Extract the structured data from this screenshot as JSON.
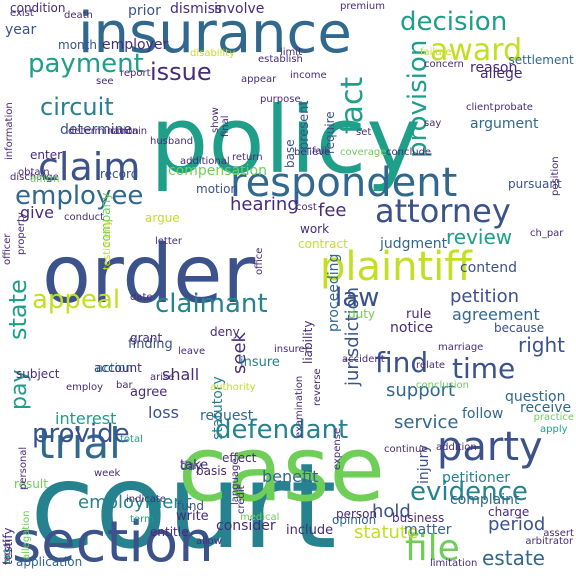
{
  "palette": {
    "purple": "#472c7a",
    "indigo": "#3b528b",
    "blue": "#31688e",
    "teal": "#26828e",
    "cyan": "#1f9e89",
    "green": "#35b779",
    "lime": "#6ece58",
    "yellow": "#c2df23"
  },
  "words": [
    {
      "text": "court",
      "color": "teal"
    },
    {
      "text": "order",
      "color": "indigo"
    },
    {
      "text": "policy",
      "color": "cyan"
    },
    {
      "text": "case",
      "color": "lime"
    },
    {
      "text": "section",
      "color": "indigo"
    },
    {
      "text": "insurance",
      "color": "blue"
    },
    {
      "text": "respondent",
      "color": "blue"
    },
    {
      "text": "plaintiff",
      "color": "yellow"
    },
    {
      "text": "claim",
      "color": "indigo"
    },
    {
      "text": "party",
      "color": "indigo"
    },
    {
      "text": "trial",
      "color": "blue"
    },
    {
      "text": "attorney",
      "color": "indigo"
    },
    {
      "text": "award",
      "color": "yellow"
    },
    {
      "text": "employee",
      "color": "blue"
    },
    {
      "text": "claimant",
      "color": "teal"
    },
    {
      "text": "defendant",
      "color": "teal"
    },
    {
      "text": "provide",
      "color": "indigo"
    },
    {
      "text": "evidence",
      "color": "teal"
    },
    {
      "text": "file",
      "color": "lime"
    },
    {
      "text": "appeal",
      "color": "yellow"
    },
    {
      "text": "pay",
      "color": "cyan"
    },
    {
      "text": "state",
      "color": "cyan"
    },
    {
      "text": "payment",
      "color": "cyan"
    },
    {
      "text": "decision",
      "color": "cyan"
    },
    {
      "text": "circuit",
      "color": "teal"
    },
    {
      "text": "issue",
      "color": "purple"
    },
    {
      "text": "fact",
      "color": "cyan"
    },
    {
      "text": "provision",
      "color": "cyan"
    },
    {
      "text": "find",
      "color": "indigo"
    },
    {
      "text": "time",
      "color": "indigo"
    },
    {
      "text": "law",
      "color": "indigo"
    },
    {
      "text": "employment",
      "color": "teal"
    },
    {
      "text": "hearing",
      "color": "purple"
    },
    {
      "text": "review",
      "color": "cyan"
    },
    {
      "text": "petition",
      "color": "indigo"
    },
    {
      "text": "right",
      "color": "indigo"
    },
    {
      "text": "support",
      "color": "blue"
    },
    {
      "text": "service",
      "color": "blue"
    },
    {
      "text": "jurisdiction",
      "color": "indigo"
    },
    {
      "text": "period",
      "color": "indigo"
    },
    {
      "text": "estate",
      "color": "blue"
    },
    {
      "text": "fee",
      "color": "purple"
    },
    {
      "text": "agreement",
      "color": "blue"
    },
    {
      "text": "judgment",
      "color": "blue"
    },
    {
      "text": "determine",
      "color": "indigo"
    },
    {
      "text": "record",
      "color": "indigo"
    },
    {
      "text": "interest",
      "color": "cyan"
    },
    {
      "text": "loss",
      "color": "indigo"
    },
    {
      "text": "benefit",
      "color": "blue"
    },
    {
      "text": "statute",
      "color": "yellow"
    },
    {
      "text": "hold",
      "color": "indigo"
    },
    {
      "text": "petitioner",
      "color": "teal"
    },
    {
      "text": "injury",
      "color": "indigo"
    },
    {
      "text": "complaint",
      "color": "blue"
    },
    {
      "text": "present",
      "color": "indigo"
    },
    {
      "text": "proceeding",
      "color": "blue"
    },
    {
      "text": "seek",
      "color": "purple"
    },
    {
      "text": "statutory",
      "color": "teal"
    },
    {
      "text": "compensation",
      "color": "lime"
    },
    {
      "text": "motion",
      "color": "indigo"
    },
    {
      "text": "work",
      "color": "purple"
    },
    {
      "text": "contend",
      "color": "indigo"
    },
    {
      "text": "rule",
      "color": "purple"
    },
    {
      "text": "notice",
      "color": "purple"
    },
    {
      "text": "because",
      "color": "indigo"
    },
    {
      "text": "question",
      "color": "blue"
    },
    {
      "text": "receive",
      "color": "blue"
    },
    {
      "text": "follow",
      "color": "blue"
    },
    {
      "text": "request",
      "color": "blue"
    },
    {
      "text": "shall",
      "color": "purple"
    },
    {
      "text": "agree",
      "color": "purple"
    },
    {
      "text": "insure",
      "color": "teal"
    },
    {
      "text": "finding",
      "color": "indigo"
    },
    {
      "text": "action",
      "color": "cyan"
    },
    {
      "text": "grant",
      "color": "purple"
    },
    {
      "text": "deny",
      "color": "purple"
    },
    {
      "text": "account",
      "color": "purple"
    },
    {
      "text": "subject",
      "color": "purple"
    },
    {
      "text": "give",
      "color": "purple"
    },
    {
      "text": "argue",
      "color": "yellow"
    },
    {
      "text": "enter",
      "color": "purple"
    },
    {
      "text": "year",
      "color": "indigo"
    },
    {
      "text": "month",
      "color": "indigo"
    },
    {
      "text": "employer",
      "color": "purple"
    },
    {
      "text": "prior",
      "color": "indigo"
    },
    {
      "text": "dismiss",
      "color": "purple"
    },
    {
      "text": "involve",
      "color": "purple"
    },
    {
      "text": "condition",
      "color": "purple"
    },
    {
      "text": "reason",
      "color": "purple"
    },
    {
      "text": "settlement",
      "color": "blue"
    },
    {
      "text": "allege",
      "color": "purple"
    },
    {
      "text": "require",
      "color": "indigo"
    },
    {
      "text": "argument",
      "color": "blue"
    },
    {
      "text": "base",
      "color": "indigo"
    },
    {
      "text": "pursuant",
      "color": "indigo"
    },
    {
      "text": "contract",
      "color": "yellow"
    },
    {
      "text": "ch_par",
      "color": "purple"
    },
    {
      "text": "company",
      "color": "lime"
    },
    {
      "text": "date",
      "color": "purple"
    },
    {
      "text": "letter",
      "color": "purple"
    },
    {
      "text": "take",
      "color": "purple"
    },
    {
      "text": "fund",
      "color": "indigo"
    },
    {
      "text": "day",
      "color": "indigo"
    },
    {
      "text": "write",
      "color": "purple"
    },
    {
      "text": "consider",
      "color": "purple"
    },
    {
      "text": "include",
      "color": "purple"
    },
    {
      "text": "entitle",
      "color": "purple"
    },
    {
      "text": "opinion",
      "color": "blue"
    },
    {
      "text": "matter",
      "color": "blue"
    },
    {
      "text": "person",
      "color": "purple"
    },
    {
      "text": "business",
      "color": "purple"
    },
    {
      "text": "charge",
      "color": "purple"
    },
    {
      "text": "effect",
      "color": "purple"
    },
    {
      "text": "basis",
      "color": "purple"
    },
    {
      "text": "application",
      "color": "blue"
    },
    {
      "text": "testify",
      "color": "purple"
    },
    {
      "text": "result",
      "color": "lime"
    },
    {
      "text": "term",
      "color": "cyan"
    },
    {
      "text": "allow",
      "color": "purple"
    },
    {
      "text": "arise",
      "color": "purple"
    },
    {
      "text": "duty",
      "color": "lime"
    },
    {
      "text": "insurer",
      "color": "purple"
    },
    {
      "text": "leave",
      "color": "purple"
    },
    {
      "text": "liability",
      "color": "purple"
    },
    {
      "text": "accident",
      "color": "purple"
    },
    {
      "text": "reverse",
      "color": "purple"
    },
    {
      "text": "examination",
      "color": "purple"
    },
    {
      "text": "practice",
      "color": "lime"
    },
    {
      "text": "apply",
      "color": "cyan"
    },
    {
      "text": "total",
      "color": "cyan"
    },
    {
      "text": "language",
      "color": "purple"
    },
    {
      "text": "expense",
      "color": "purple"
    },
    {
      "text": "allegation",
      "color": "lime"
    },
    {
      "text": "legal",
      "color": "purple"
    },
    {
      "text": "limitation",
      "color": "purple"
    },
    {
      "text": "medical",
      "color": "lime"
    },
    {
      "text": "continue",
      "color": "purple"
    },
    {
      "text": "arbitrator",
      "color": "purple"
    },
    {
      "text": "assert",
      "color": "purple"
    },
    {
      "text": "relate",
      "color": "purple"
    },
    {
      "text": "conclusion",
      "color": "lime"
    },
    {
      "text": "exist",
      "color": "purple"
    },
    {
      "text": "death",
      "color": "purple"
    },
    {
      "text": "premium",
      "color": "purple"
    },
    {
      "text": "disability",
      "color": "yellow"
    },
    {
      "text": "establish",
      "color": "purple"
    },
    {
      "text": "limit",
      "color": "purple"
    },
    {
      "text": "failure",
      "color": "yellow"
    },
    {
      "text": "concern",
      "color": "purple"
    },
    {
      "text": "see",
      "color": "purple"
    },
    {
      "text": "report",
      "color": "purple"
    },
    {
      "text": "appear",
      "color": "purple"
    },
    {
      "text": "income",
      "color": "purple"
    },
    {
      "text": "say",
      "color": "purple"
    },
    {
      "text": "client",
      "color": "purple"
    },
    {
      "text": "probate",
      "color": "purple"
    },
    {
      "text": "position",
      "color": "purple"
    },
    {
      "text": "information",
      "color": "purple"
    },
    {
      "text": "determination",
      "color": "purple"
    },
    {
      "text": "contain",
      "color": "purple"
    },
    {
      "text": "husband",
      "color": "purple"
    },
    {
      "text": "set",
      "color": "purple"
    },
    {
      "text": "purpose",
      "color": "purple"
    },
    {
      "text": "show",
      "color": "purple"
    },
    {
      "text": "final",
      "color": "purple"
    },
    {
      "text": "discharge",
      "color": "purple"
    },
    {
      "text": "obtain",
      "color": "purple"
    },
    {
      "text": "affirm",
      "color": "lime"
    },
    {
      "text": "additional",
      "color": "purple"
    },
    {
      "text": "return",
      "color": "purple"
    },
    {
      "text": "believe",
      "color": "purple"
    },
    {
      "text": "fail",
      "color": "purple"
    },
    {
      "text": "coverage",
      "color": "lime"
    },
    {
      "text": "conclude",
      "color": "purple"
    },
    {
      "text": "conduct",
      "color": "purple"
    },
    {
      "text": "cost",
      "color": "purple"
    },
    {
      "text": "officer",
      "color": "purple"
    },
    {
      "text": "property",
      "color": "purple"
    },
    {
      "text": "testimony",
      "color": "yellow"
    },
    {
      "text": "office",
      "color": "purple"
    },
    {
      "text": "marriage",
      "color": "purple"
    },
    {
      "text": "bar",
      "color": "purple"
    },
    {
      "text": "authority",
      "color": "yellow"
    },
    {
      "text": "employ",
      "color": "purple"
    },
    {
      "text": "personal",
      "color": "purple"
    },
    {
      "text": "week",
      "color": "purple"
    },
    {
      "text": "indicate",
      "color": "purple"
    },
    {
      "text": "credit",
      "color": "purple"
    },
    {
      "text": "act",
      "color": "cyan"
    },
    {
      "text": "addition",
      "color": "purple"
    },
    {
      "text": "refuse",
      "color": "purple"
    }
  ]
}
